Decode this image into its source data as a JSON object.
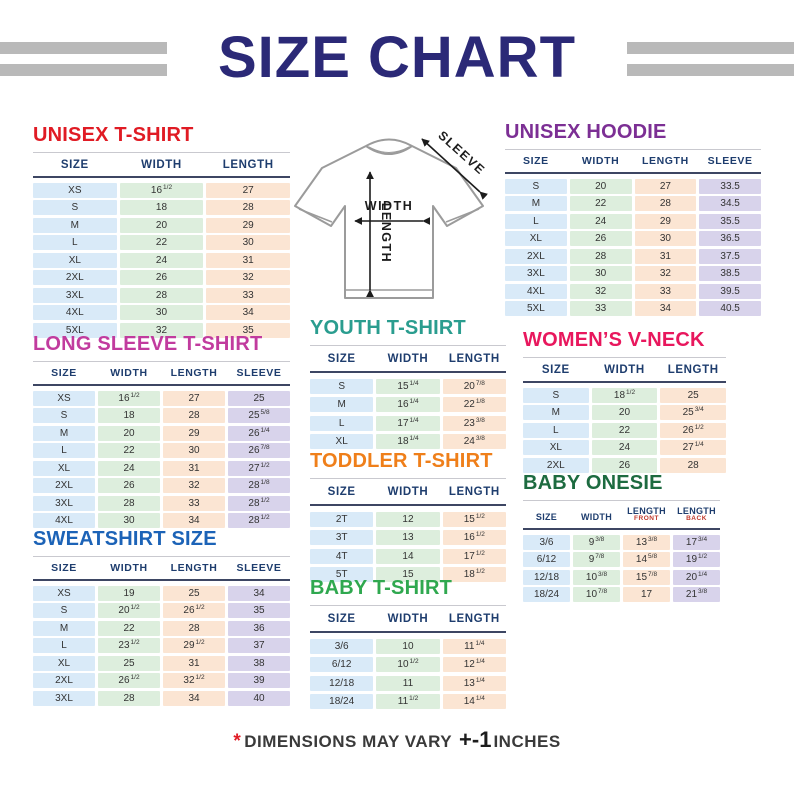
{
  "page": {
    "title": "SIZE CHART",
    "footer": {
      "asterisk": "*",
      "text": "DIMENSIONS MAY VARY",
      "tolerance": "+-1",
      "unit": "INCHES"
    }
  },
  "diagram": {
    "width_label": "WIDTH",
    "length_label": "LENGTH",
    "sleeve_label": "SLEEVE"
  },
  "colors": {
    "title_navy": "#2b2977",
    "header_text": "#1e3d6e",
    "decor_bar_gray": "#b9b9b9",
    "footer_accent_red": "#e01b24",
    "columns": {
      "size": "#d9eaf8",
      "width": "#ddeedd",
      "length": "#fbe5d3",
      "sleeve": "#d8d3eb"
    }
  },
  "tables": [
    {
      "id": "unisex-tshirt",
      "title": "UNISEX T-SHIRT",
      "title_color": "#e01b24",
      "columns": [
        {
          "label": "SIZE",
          "tint": "size"
        },
        {
          "label": "WIDTH",
          "tint": "width"
        },
        {
          "label": "LENGTH",
          "tint": "length"
        }
      ],
      "rows": [
        [
          "XS",
          "16^1/2",
          "27"
        ],
        [
          "S",
          "18",
          "28"
        ],
        [
          "M",
          "20",
          "29"
        ],
        [
          "L",
          "22",
          "30"
        ],
        [
          "XL",
          "24",
          "31"
        ],
        [
          "2XL",
          "26",
          "32"
        ],
        [
          "3XL",
          "28",
          "33"
        ],
        [
          "4XL",
          "30",
          "34"
        ],
        [
          "5XL",
          "32",
          "35"
        ]
      ]
    },
    {
      "id": "unisex-hoodie",
      "title": "UNISEX HOODIE",
      "title_color": "#7c2f94",
      "columns": [
        {
          "label": "SIZE",
          "tint": "size"
        },
        {
          "label": "WIDTH",
          "tint": "width"
        },
        {
          "label": "LENGTH",
          "tint": "length"
        },
        {
          "label": "SLEEVE",
          "tint": "sleeve"
        }
      ],
      "rows": [
        [
          "S",
          "20",
          "27",
          "33.5"
        ],
        [
          "M",
          "22",
          "28",
          "34.5"
        ],
        [
          "L",
          "24",
          "29",
          "35.5"
        ],
        [
          "XL",
          "26",
          "30",
          "36.5"
        ],
        [
          "2XL",
          "28",
          "31",
          "37.5"
        ],
        [
          "3XL",
          "30",
          "32",
          "38.5"
        ],
        [
          "4XL",
          "32",
          "33",
          "39.5"
        ],
        [
          "5XL",
          "33",
          "34",
          "40.5"
        ]
      ]
    },
    {
      "id": "long-sleeve",
      "title": "LONG SLEEVE T-SHIRT",
      "title_color": "#c13b9e",
      "columns": [
        {
          "label": "SIZE",
          "tint": "size"
        },
        {
          "label": "WIDTH",
          "tint": "width"
        },
        {
          "label": "LENGTH",
          "tint": "length"
        },
        {
          "label": "SLEEVE",
          "tint": "sleeve"
        }
      ],
      "rows": [
        [
          "XS",
          "16^1/2",
          "27",
          "25"
        ],
        [
          "S",
          "18",
          "28",
          "25^5/8"
        ],
        [
          "M",
          "20",
          "29",
          "26^1/4"
        ],
        [
          "L",
          "22",
          "30",
          "26^7/8"
        ],
        [
          "XL",
          "24",
          "31",
          "27^1/2"
        ],
        [
          "2XL",
          "26",
          "32",
          "28^1/8"
        ],
        [
          "3XL",
          "28",
          "33",
          "28^1/2"
        ],
        [
          "4XL",
          "30",
          "34",
          "28^1/2"
        ]
      ]
    },
    {
      "id": "youth",
      "title": "YOUTH T-SHIRT",
      "title_color": "#2a9d8f",
      "columns": [
        {
          "label": "SIZE",
          "tint": "size"
        },
        {
          "label": "WIDTH",
          "tint": "width"
        },
        {
          "label": "LENGTH",
          "tint": "length"
        }
      ],
      "rows": [
        [
          "S",
          "15^1/4",
          "20^7/8"
        ],
        [
          "M",
          "16^1/4",
          "22^1/8"
        ],
        [
          "L",
          "17^1/4",
          "23^3/8"
        ],
        [
          "XL",
          "18^1/4",
          "24^3/8"
        ]
      ]
    },
    {
      "id": "womens-vneck",
      "title": "WOMEN’S V-NECK",
      "title_color": "#e8175d",
      "columns": [
        {
          "label": "SIZE",
          "tint": "size"
        },
        {
          "label": "WIDTH",
          "tint": "width"
        },
        {
          "label": "LENGTH",
          "tint": "length"
        }
      ],
      "rows": [
        [
          "S",
          "18^1/2",
          "25"
        ],
        [
          "M",
          "20",
          "25^3/4"
        ],
        [
          "L",
          "22",
          "26^1/2"
        ],
        [
          "XL",
          "24",
          "27^1/4"
        ],
        [
          "2XL",
          "26",
          "28"
        ]
      ]
    },
    {
      "id": "toddler",
      "title": "TODDLER T-SHIRT",
      "title_color": "#ef7f1a",
      "columns": [
        {
          "label": "SIZE",
          "tint": "size"
        },
        {
          "label": "WIDTH",
          "tint": "width"
        },
        {
          "label": "LENGTH",
          "tint": "length"
        }
      ],
      "rows": [
        [
          "2T",
          "12",
          "15^1/2"
        ],
        [
          "3T",
          "13",
          "16^1/2"
        ],
        [
          "4T",
          "14",
          "17^1/2"
        ],
        [
          "5T",
          "15",
          "18^1/2"
        ]
      ]
    },
    {
      "id": "sweatshirt",
      "title": "SWEATSHIRT SIZE",
      "title_color": "#1c63b7",
      "columns": [
        {
          "label": "SIZE",
          "tint": "size"
        },
        {
          "label": "WIDTH",
          "tint": "width"
        },
        {
          "label": "LENGTH",
          "tint": "length"
        },
        {
          "label": "SLEEVE",
          "tint": "sleeve"
        }
      ],
      "rows": [
        [
          "XS",
          "19",
          "25",
          "34"
        ],
        [
          "S",
          "20^1/2",
          "26^1/2",
          "35"
        ],
        [
          "M",
          "22",
          "28",
          "36"
        ],
        [
          "L",
          "23^1/2",
          "29^1/2",
          "37"
        ],
        [
          "XL",
          "25",
          "31",
          "38"
        ],
        [
          "2XL",
          "26^1/2",
          "32^1/2",
          "39"
        ],
        [
          "3XL",
          "28",
          "34",
          "40"
        ]
      ]
    },
    {
      "id": "baby-tshirt",
      "title": "BABY T-SHIRT",
      "title_color": "#2fa84f",
      "columns": [
        {
          "label": "SIZE",
          "tint": "size"
        },
        {
          "label": "WIDTH",
          "tint": "width"
        },
        {
          "label": "LENGTH",
          "tint": "length"
        }
      ],
      "rows": [
        [
          "3/6",
          "10",
          "11^1/4"
        ],
        [
          "6/12",
          "10^1/2",
          "12^1/4"
        ],
        [
          "12/18",
          "11",
          "13^1/4"
        ],
        [
          "18/24",
          "11^1/2",
          "14^1/4"
        ]
      ]
    },
    {
      "id": "baby-onesie",
      "title": "BABY ONESIE",
      "title_color": "#1d6b40",
      "columns": [
        {
          "label": "SIZE",
          "tint": "size"
        },
        {
          "label": "WIDTH",
          "tint": "width"
        },
        {
          "label": "LENGTH",
          "sublabel": "FRONT",
          "tint": "length"
        },
        {
          "label": "LENGTH",
          "sublabel": "BACK",
          "tint": "sleeve"
        }
      ],
      "rows": [
        [
          "3/6",
          "9^3/8",
          "13^3/8",
          "17^3/4"
        ],
        [
          "6/12",
          "9^7/8",
          "14^5/8",
          "19^1/2"
        ],
        [
          "12/18",
          "10^3/8",
          "15^7/8",
          "20^1/4"
        ],
        [
          "18/24",
          "10^7/8",
          "17",
          "21^3/8"
        ]
      ]
    }
  ]
}
